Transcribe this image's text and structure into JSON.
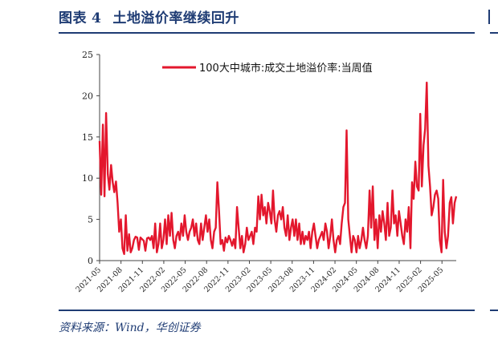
{
  "figure": {
    "label": "图表",
    "number": "4",
    "title": "土地溢价率继续回升",
    "source": "资料来源：Wind，华创证券"
  },
  "colors": {
    "accent": "#1f3c74",
    "series": "#e3172d"
  },
  "chart_data": {
    "type": "line",
    "ylim": [
      0,
      25
    ],
    "yticks": [
      0,
      5,
      10,
      15,
      20,
      25
    ],
    "xticks": [
      "2021-05",
      "2021-08",
      "2021-11",
      "2022-02",
      "2022-05",
      "2022-08",
      "2022-11",
      "2023-02",
      "2023-05",
      "2023-08",
      "2023-11",
      "2024-02",
      "2024-05",
      "2024-08",
      "2024-11",
      "2025-02",
      "2025-05"
    ],
    "xlim_months": [
      "2021-05",
      "2025-07"
    ],
    "legend": "top-right",
    "grid": false,
    "series": [
      {
        "name": "100大中城市:成交土地溢价率:当周值",
        "values": [
          14.5,
          8.0,
          16.5,
          7.8,
          17.9,
          10.5,
          8.6,
          11.6,
          9.5,
          8.3,
          9.6,
          7.0,
          3.5,
          5.0,
          1.5,
          0.8,
          5.5,
          1.2,
          3.2,
          1.0,
          1.5,
          2.5,
          2.9,
          2.8,
          1.3,
          2.8,
          2.6,
          2.4,
          1.2,
          2.7,
          2.8,
          2.5,
          3.0,
          1.5,
          4.5,
          1.0,
          2.0,
          4.5,
          1.5,
          2.5,
          5.0,
          2.0,
          5.5,
          3.0,
          5.8,
          2.5,
          1.5,
          3.0,
          3.5,
          2.5,
          4.5,
          3.0,
          5.5,
          3.5,
          2.5,
          3.5,
          4.0,
          5.0,
          3.0,
          4.5,
          2.5,
          2.0,
          4.5,
          2.5,
          4.0,
          5.5,
          3.5,
          5.0,
          2.5,
          1.5,
          3.5,
          4.0,
          9.5,
          6.0,
          2.0,
          2.5,
          1.2,
          2.8,
          2.2,
          3.0,
          2.5,
          1.8,
          2.6,
          1.5,
          6.5,
          4.0,
          1.5,
          3.0,
          1.0,
          2.0,
          4.0,
          2.5,
          3.0,
          3.5,
          2.0,
          4.0,
          3.5,
          7.8,
          5.0,
          8.0,
          5.5,
          6.5,
          4.5,
          7.0,
          6.0,
          4.5,
          8.5,
          5.0,
          3.5,
          5.5,
          6.0,
          5.0,
          6.5,
          4.0,
          3.0,
          5.5,
          2.5,
          4.0,
          5.0,
          3.0,
          5.0,
          2.5,
          4.5,
          2.0,
          3.5,
          2.0,
          3.0,
          2.5,
          3.5,
          1.5,
          3.5,
          4.5,
          3.0,
          1.5,
          2.5,
          3.0,
          3.5,
          2.5,
          4.5,
          3.5,
          1.5,
          3.0,
          5.0,
          2.5,
          1.0,
          2.5,
          3.0,
          2.0,
          4.5,
          6.5,
          7.0,
          15.8,
          5.0,
          3.0,
          1.0,
          3.0,
          2.5,
          1.0,
          3.0,
          1.5,
          2.5,
          4.0,
          2.5,
          1.5,
          3.0,
          8.5,
          4.0,
          9.0,
          2.5,
          5.0,
          1.5,
          5.5,
          3.5,
          6.0,
          4.5,
          2.5,
          7.0,
          3.0,
          4.0,
          8.5,
          4.5,
          5.5,
          3.0,
          6.0,
          4.5,
          3.0,
          2.0,
          5.0,
          3.5,
          6.5,
          1.5,
          9.5,
          7.5,
          12.0,
          9.0,
          8.5,
          17.8,
          9.0,
          14.0,
          16.0,
          21.6,
          11.5,
          9.0,
          5.5,
          6.5,
          8.0,
          8.5,
          7.5,
          2.5,
          1.0,
          9.8,
          3.5,
          1.5,
          3.0,
          7.0,
          7.7,
          4.5,
          7.0,
          7.8
        ]
      }
    ]
  }
}
